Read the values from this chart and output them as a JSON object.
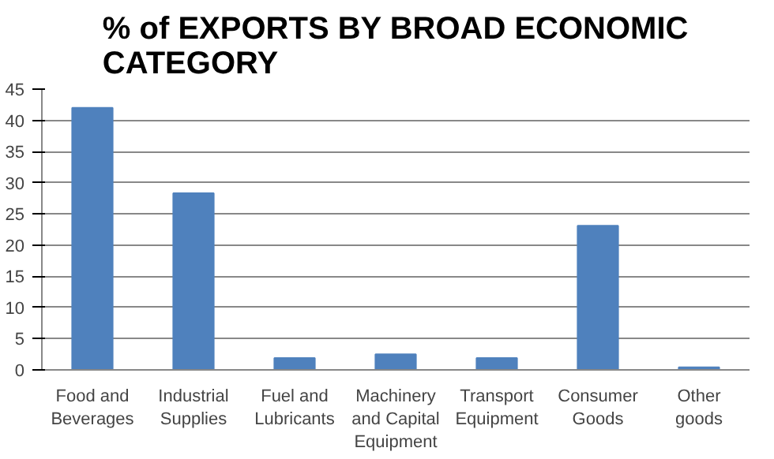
{
  "chart_data": {
    "type": "bar",
    "title": "% of EXPORTS BY BROAD ECONOMIC\nCATEGORY",
    "categories": [
      "Food and\nBeverages",
      "Industrial\nSupplies",
      "Fuel and\nLubricants",
      "Machinery\nand Capital\nEquipment",
      "Transport\nEquipment",
      "Consumer\nGoods",
      "Other\ngoods"
    ],
    "values": [
      42.0,
      28.3,
      1.9,
      2.5,
      1.9,
      23.1,
      0.4
    ],
    "color": "#4f81bd",
    "ylim": [
      0,
      45
    ],
    "yticks": [
      0,
      5,
      10,
      15,
      20,
      25,
      30,
      35,
      40,
      45
    ],
    "grid": "y"
  }
}
